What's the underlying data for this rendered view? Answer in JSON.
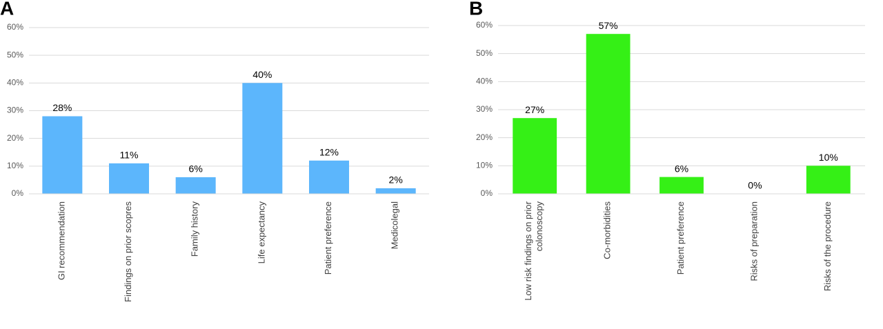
{
  "chart_data": [
    {
      "type": "bar",
      "title": "A",
      "categories": [
        "GI recommendation",
        "Findings on prior scopres",
        "Family history",
        "Life expectancy",
        "Patient preference",
        "Medicolegal"
      ],
      "values": [
        28,
        11,
        6,
        40,
        12,
        2
      ],
      "value_labels": [
        "28%",
        "11%",
        "6%",
        "40%",
        "12%",
        "2%"
      ],
      "color": "#5cb6fc",
      "ylim": [
        0,
        60
      ],
      "yticks": [
        {
          "value": 0,
          "label": "0%"
        },
        {
          "value": 10,
          "label": "10%"
        },
        {
          "value": 20,
          "label": "20%"
        },
        {
          "value": 30,
          "label": "30%"
        },
        {
          "value": 40,
          "label": "40%"
        },
        {
          "value": 50,
          "label": "50%"
        },
        {
          "value": 60,
          "label": "60%"
        }
      ],
      "grid": true
    },
    {
      "type": "bar",
      "title": "B",
      "categories": [
        "Low risk findings on prior colonoscopy",
        "Co-morbidities",
        "Patient preference",
        "Risks of preparation",
        "Risks of the procedure"
      ],
      "values": [
        27,
        57,
        6,
        0,
        10
      ],
      "value_labels": [
        "27%",
        "57%",
        "6%",
        "0%",
        "10%"
      ],
      "color": "#35f016",
      "ylim": [
        0,
        60
      ],
      "yticks": [
        {
          "value": 0,
          "label": "0%"
        },
        {
          "value": 10,
          "label": "10%"
        },
        {
          "value": 20,
          "label": "20%"
        },
        {
          "value": 30,
          "label": "30%"
        },
        {
          "value": 40,
          "label": "40%"
        },
        {
          "value": 50,
          "label": "50%"
        },
        {
          "value": 60,
          "label": "60%"
        }
      ],
      "grid": true
    }
  ]
}
